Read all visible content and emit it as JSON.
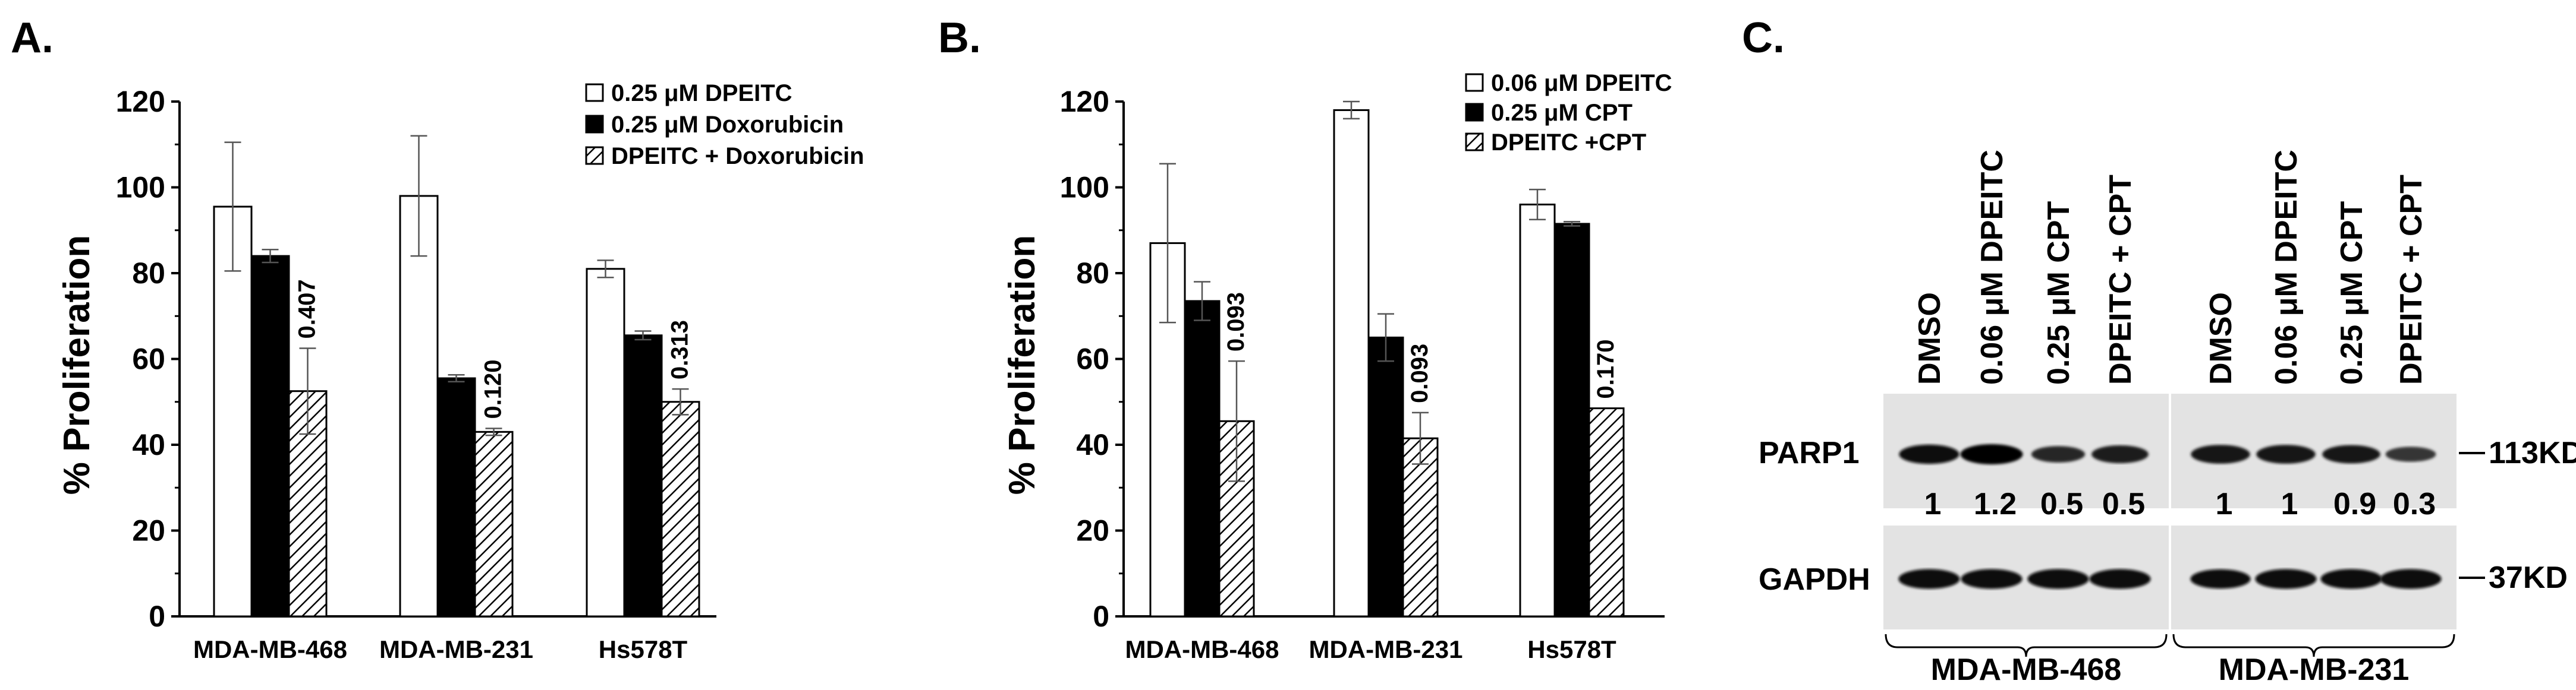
{
  "chart_data": [
    {
      "panel": "A.",
      "type": "bar",
      "ylabel": "% Proliferation",
      "xlabel": "",
      "ylim": [
        0,
        120
      ],
      "yticks": [
        "0",
        "20",
        "40",
        "60",
        "80",
        "100",
        "120"
      ],
      "categories": [
        "MDA-MB-468",
        "MDA-MB-231",
        "Hs578T"
      ],
      "series": [
        {
          "name": "0.25 μM DPEITC",
          "fill": "open",
          "values": [
            95.5,
            98,
            81
          ],
          "errors": [
            15,
            14,
            2
          ]
        },
        {
          "name": "0.25 μM Doxorubicin",
          "fill": "solid",
          "values": [
            84,
            55.5,
            65.5
          ],
          "errors": [
            1.5,
            0.8,
            1
          ]
        },
        {
          "name": "DPEITC + Doxorubicin",
          "fill": "hatched",
          "values": [
            52.5,
            43,
            50
          ],
          "errors": [
            10,
            0.8,
            3
          ]
        }
      ],
      "annotations": [
        "0.407",
        "0.120",
        "0.313"
      ],
      "legend": "top-right"
    },
    {
      "panel": "B.",
      "type": "bar",
      "ylabel": "% Proliferation",
      "xlabel": "",
      "ylim": [
        0,
        120
      ],
      "yticks": [
        "0",
        "20",
        "40",
        "60",
        "80",
        "100",
        "120"
      ],
      "categories": [
        "MDA-MB-468",
        "MDA-MB-231",
        "Hs578T"
      ],
      "series": [
        {
          "name": "0.06 μM DPEITC",
          "fill": "open",
          "values": [
            87,
            118,
            96
          ],
          "errors": [
            18.5,
            2,
            3.5
          ]
        },
        {
          "name": "0.25 μM CPT",
          "fill": "solid",
          "values": [
            73.5,
            65,
            91.5
          ],
          "errors": [
            4.5,
            5.5,
            0.5
          ]
        },
        {
          "name": "DPEITC +CPT",
          "fill": "hatched",
          "values": [
            45.5,
            41.5,
            48.5
          ],
          "errors": [
            14,
            6,
            0
          ]
        }
      ],
      "annotations": [
        "0.093",
        "0.093",
        "0.170"
      ],
      "legend": "top-right"
    }
  ],
  "western_blot": {
    "panel": "C.",
    "lanes": [
      "DMSO",
      "0.06 μM DPEITC",
      "0.25 μM CPT",
      "DPEITC + CPT",
      "DMSO",
      "0.06 μM DPEITC",
      "0.25 μM CPT",
      "DPEITC + CPT"
    ],
    "rows": [
      {
        "label": "PARP1",
        "marker": "113KD",
        "intensities": [
          0.9,
          1.0,
          0.6,
          0.75,
          0.85,
          0.85,
          0.8,
          0.45
        ]
      },
      {
        "label": "GAPDH",
        "marker": "37KD",
        "intensities": [
          0.95,
          0.95,
          0.95,
          0.95,
          0.9,
          0.95,
          0.95,
          0.95
        ]
      }
    ],
    "ratios": [
      "1",
      "1.2",
      "0.5",
      "0.5",
      "1",
      "1",
      "0.9",
      "0.3"
    ],
    "cell_lines": [
      "MDA-MB-468",
      "MDA-MB-231"
    ]
  }
}
